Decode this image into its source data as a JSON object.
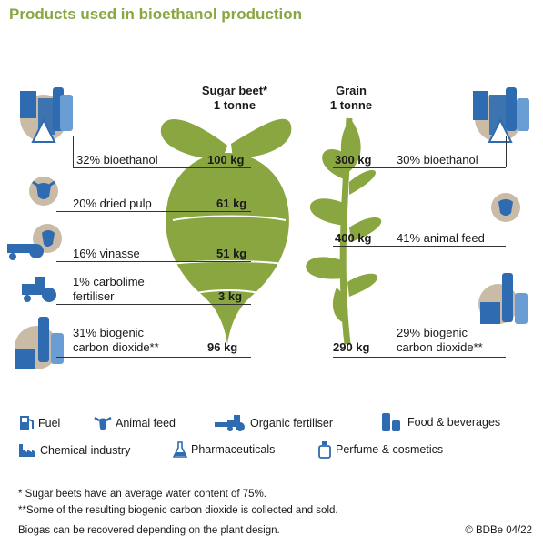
{
  "title": "Products used in bioethanol production",
  "columns": {
    "sugar_beet": {
      "name": "Sugar beet*",
      "amount": "1 tonne"
    },
    "grain": {
      "name": "Grain",
      "amount": "1 tonne"
    }
  },
  "sugar_beet_rows": [
    {
      "label": "32% bioethanol",
      "value": "100 kg"
    },
    {
      "label": "20% dried pulp",
      "value": "61 kg"
    },
    {
      "label": "16% vinasse",
      "value": "51 kg"
    },
    {
      "label": "1% carbolime\nfertiliser",
      "value": "3 kg"
    },
    {
      "label": "31% biogenic\ncarbon dioxide**",
      "value": "96 kg"
    }
  ],
  "grain_rows": [
    {
      "label": "30% bioethanol",
      "value": "300 kg"
    },
    {
      "label": "41% animal feed",
      "value": "400 kg"
    },
    {
      "label": "29% biogenic\ncarbon dioxide**",
      "value": "290 kg"
    }
  ],
  "legend": {
    "fuel": "Fuel",
    "animal_feed": "Animal feed",
    "organic_fertiliser": "Organic fertiliser",
    "food_beverages": "Food & beverages",
    "chemical_industry": "Chemical industry",
    "pharmaceuticals": "Pharmaceuticals",
    "perfume_cosmetics": "Perfume & cosmetics"
  },
  "footnotes": {
    "note1": "* Sugar beets have an average water content of 75%.",
    "note2": "**Some of the resulting biogenic carbon dioxide is collected and sold.",
    "note3": "Biogas can be recovered depending on the plant design.",
    "credit": "© BDBe 04/22"
  },
  "colors": {
    "green": "#8aa641",
    "blue": "#2e6bb0",
    "tan": "#c9bba6"
  }
}
